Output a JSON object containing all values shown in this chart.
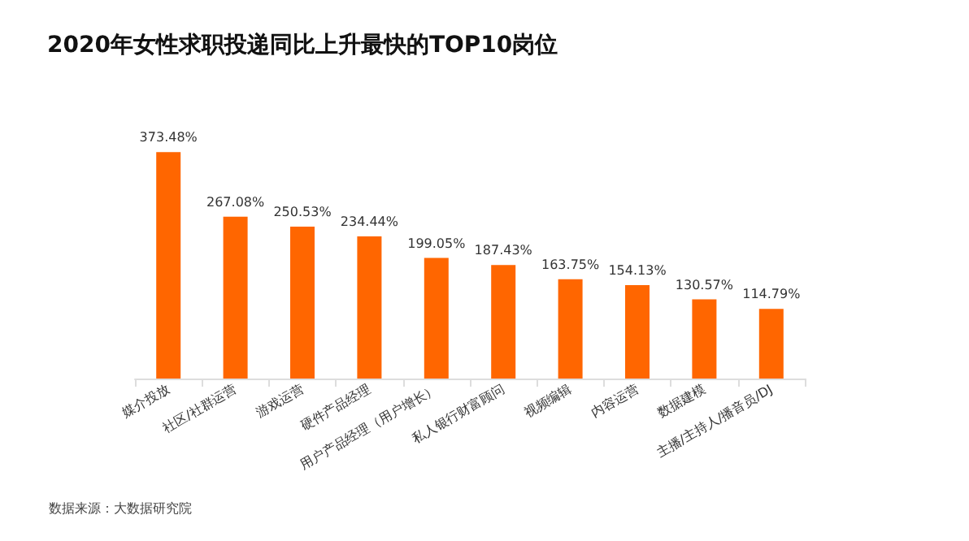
{
  "chart_data": {
    "type": "bar",
    "title": "2020年女性求职投递同比上升最快的TOP10岗位",
    "categories": [
      "媒介投放",
      "社区/社群运营",
      "游戏运营",
      "硬件产品经理",
      "用户产品经理（用户增长）",
      "私人银行财富顾问",
      "视频编辑",
      "内容运营",
      "数据建模",
      "主播/主持人/播音员/DJ"
    ],
    "values": [
      373.48,
      267.08,
      250.53,
      234.44,
      199.05,
      187.43,
      163.75,
      154.13,
      130.57,
      114.79
    ],
    "value_labels": [
      "373.48%",
      "267.08%",
      "250.53%",
      "234.44%",
      "199.05%",
      "187.43%",
      "163.75%",
      "154.13%",
      "130.57%",
      "114.79%"
    ],
    "color": "#ff6600",
    "annotations": [
      "数据来源：大数据研究院"
    ]
  }
}
